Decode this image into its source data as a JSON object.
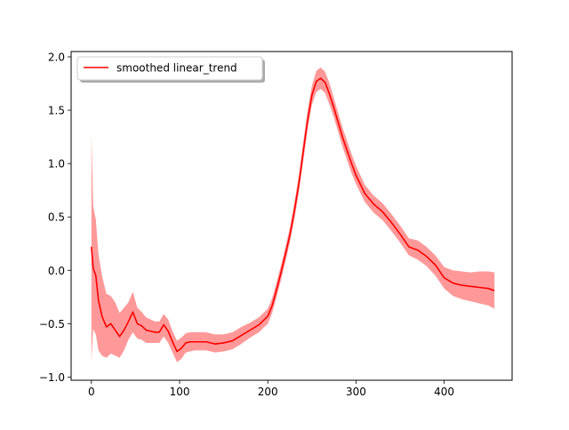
{
  "chart_data": {
    "type": "line",
    "title": "",
    "xlabel": "",
    "ylabel": "",
    "xlim": [
      -23,
      477
    ],
    "ylim": [
      -1.03,
      2.05
    ],
    "x_ticks": [
      0,
      100,
      200,
      300,
      400
    ],
    "y_ticks": [
      -1.0,
      -0.5,
      0.0,
      0.5,
      1.0,
      1.5,
      2.0
    ],
    "x_tick_labels": [
      "0",
      "100",
      "200",
      "300",
      "400"
    ],
    "y_tick_labels": [
      "−1.0",
      "−0.5",
      "0.0",
      "0.5",
      "1.0",
      "1.5",
      "2.0"
    ],
    "grid": false,
    "legend": {
      "placement": "upper left",
      "entries": [
        "smoothed linear_trend"
      ]
    },
    "series": [
      {
        "name": "smoothed linear_trend",
        "color": "#ff0000",
        "band_color": "#ff9999",
        "x": [
          0,
          2,
          5,
          8,
          12,
          17,
          22,
          27,
          32,
          37,
          42,
          47,
          52,
          57,
          62,
          67,
          72,
          77,
          82,
          87,
          92,
          97,
          102,
          107,
          112,
          117,
          122,
          130,
          140,
          150,
          160,
          170,
          180,
          190,
          200,
          205,
          210,
          215,
          220,
          225,
          230,
          235,
          240,
          245,
          250,
          255,
          260,
          265,
          270,
          275,
          280,
          285,
          290,
          295,
          300,
          310,
          320,
          330,
          340,
          350,
          360,
          370,
          380,
          390,
          400,
          410,
          420,
          430,
          440,
          450,
          457
        ],
        "y": [
          0.22,
          0.02,
          -0.05,
          -0.28,
          -0.43,
          -0.53,
          -0.5,
          -0.56,
          -0.62,
          -0.56,
          -0.48,
          -0.39,
          -0.5,
          -0.52,
          -0.56,
          -0.57,
          -0.58,
          -0.58,
          -0.51,
          -0.57,
          -0.67,
          -0.76,
          -0.73,
          -0.68,
          -0.67,
          -0.67,
          -0.67,
          -0.67,
          -0.69,
          -0.68,
          -0.66,
          -0.61,
          -0.56,
          -0.51,
          -0.43,
          -0.33,
          -0.18,
          -0.02,
          0.15,
          0.33,
          0.55,
          0.8,
          1.1,
          1.4,
          1.64,
          1.77,
          1.8,
          1.76,
          1.65,
          1.52,
          1.38,
          1.24,
          1.12,
          1.0,
          0.89,
          0.72,
          0.62,
          0.55,
          0.45,
          0.34,
          0.22,
          0.19,
          0.13,
          0.05,
          -0.07,
          -0.12,
          -0.14,
          -0.15,
          -0.16,
          -0.17,
          -0.19
        ],
        "lower": [
          -0.85,
          -0.55,
          -0.6,
          -0.75,
          -0.8,
          -0.82,
          -0.78,
          -0.8,
          -0.82,
          -0.75,
          -0.65,
          -0.58,
          -0.64,
          -0.65,
          -0.68,
          -0.68,
          -0.68,
          -0.68,
          -0.62,
          -0.68,
          -0.77,
          -0.86,
          -0.83,
          -0.77,
          -0.76,
          -0.75,
          -0.75,
          -0.75,
          -0.77,
          -0.76,
          -0.74,
          -0.69,
          -0.63,
          -0.58,
          -0.5,
          -0.4,
          -0.25,
          -0.09,
          0.08,
          0.26,
          0.47,
          0.72,
          1.01,
          1.31,
          1.55,
          1.67,
          1.7,
          1.66,
          1.55,
          1.43,
          1.29,
          1.15,
          1.03,
          0.91,
          0.81,
          0.64,
          0.54,
          0.47,
          0.37,
          0.26,
          0.14,
          0.1,
          0.04,
          -0.05,
          -0.17,
          -0.24,
          -0.27,
          -0.29,
          -0.31,
          -0.33,
          -0.36
        ],
        "upper": [
          1.27,
          0.6,
          0.48,
          0.15,
          -0.05,
          -0.22,
          -0.24,
          -0.3,
          -0.4,
          -0.35,
          -0.3,
          -0.2,
          -0.35,
          -0.39,
          -0.44,
          -0.46,
          -0.48,
          -0.48,
          -0.41,
          -0.46,
          -0.57,
          -0.66,
          -0.63,
          -0.59,
          -0.58,
          -0.58,
          -0.58,
          -0.58,
          -0.6,
          -0.6,
          -0.58,
          -0.53,
          -0.49,
          -0.44,
          -0.36,
          -0.26,
          -0.11,
          0.05,
          0.22,
          0.4,
          0.63,
          0.88,
          1.19,
          1.49,
          1.73,
          1.87,
          1.9,
          1.86,
          1.75,
          1.61,
          1.47,
          1.33,
          1.21,
          1.09,
          0.98,
          0.8,
          0.7,
          0.63,
          0.53,
          0.42,
          0.3,
          0.28,
          0.22,
          0.14,
          0.03,
          0.0,
          -0.01,
          -0.02,
          -0.01,
          -0.01,
          -0.02
        ]
      }
    ]
  }
}
